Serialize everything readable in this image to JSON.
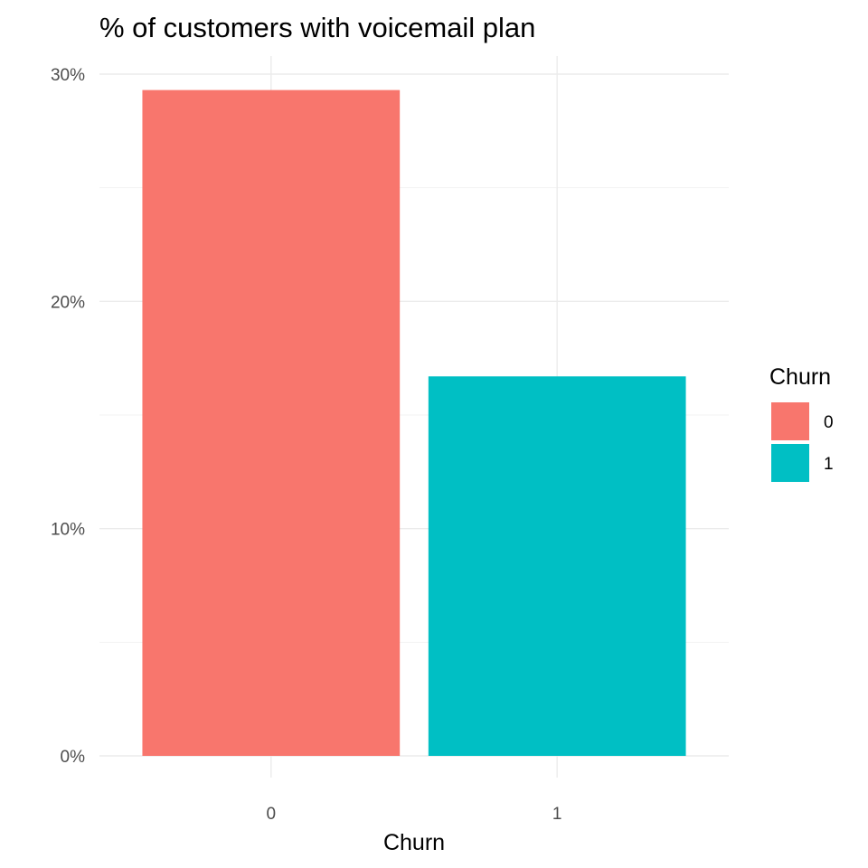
{
  "chart_data": {
    "type": "bar",
    "title": "% of customers with voicemail plan",
    "xlabel": "Churn",
    "ylabel": "",
    "categories": [
      "0",
      "1"
    ],
    "values": [
      29.3,
      16.7
    ],
    "ylim": [
      0,
      30.7
    ],
    "yticks": [
      0,
      10,
      20,
      30
    ],
    "ytick_labels": [
      "0%",
      "10%",
      "20%",
      "30%"
    ],
    "grid": true,
    "legend": {
      "title": "Churn",
      "placement": "right",
      "entries": [
        "0",
        "1"
      ]
    },
    "colors": [
      "#F8766D",
      "#00BFC4"
    ]
  }
}
